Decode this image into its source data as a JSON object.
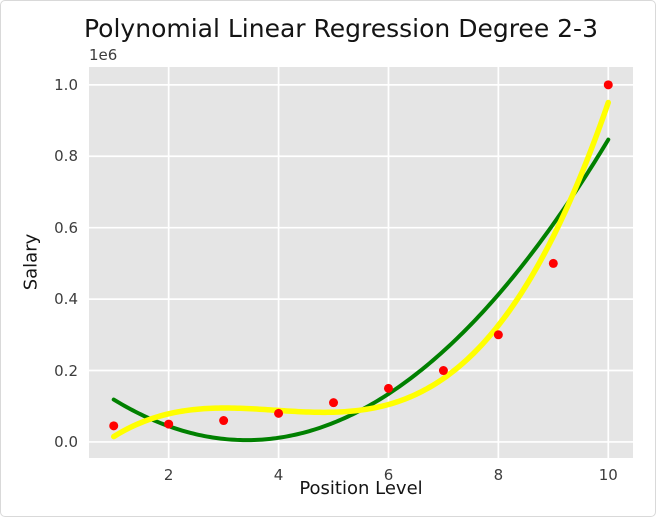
{
  "chart_data": {
    "type": "scatter",
    "title": "Polynomial Linear Regression Degree 2-3",
    "xlabel": "Position Level",
    "ylabel": "Salary",
    "y_offset_text": "1e6",
    "x_ticks": [
      2,
      4,
      6,
      8,
      10
    ],
    "x_tick_labels": [
      "2",
      "4",
      "6",
      "8",
      "10"
    ],
    "y_ticks": [
      0,
      200000,
      400000,
      600000,
      800000,
      1000000
    ],
    "y_tick_labels": [
      "0.0",
      "0.2",
      "0.4",
      "0.6",
      "0.8",
      "1.0"
    ],
    "xlim": [
      0.55,
      10.45
    ],
    "ylim": [
      -45000,
      1050000
    ],
    "grid": true,
    "legend": false,
    "axes_background": "#e5e5e5",
    "grid_color": "#ffffff",
    "scatter": {
      "name": "actual-salary-point",
      "color": "#ff0000",
      "marker_radius": 4.5,
      "x": [
        1,
        2,
        3,
        4,
        5,
        6,
        7,
        8,
        9,
        10
      ],
      "y": [
        45000,
        50000,
        60000,
        80000,
        110000,
        150000,
        200000,
        300000,
        500000,
        1000000
      ]
    },
    "series": [
      {
        "name": "polynomial-degree-2-fit-line",
        "degree": 2,
        "color": "#008000",
        "line_width": 4,
        "poly_coeffs": [
          232166,
          -132871,
          19432
        ],
        "x": [
          1,
          2,
          3,
          4,
          5,
          6,
          7,
          8,
          9,
          10
        ],
        "y": [
          118727,
          44151,
          8439,
          11591,
          53605,
          134484,
          254227,
          412833,
          610303,
          846636
        ]
      },
      {
        "name": "polynomial-degree-3-fit-line",
        "degree": 3,
        "color": "#ffff00",
        "line_width": 5.5,
        "poly_coeffs": [
          -121322,
          180655,
          -48547,
          4120
        ],
        "x": [
          1,
          2,
          3,
          4,
          5,
          6,
          7,
          8,
          9,
          10
        ],
        "y": [
          14906,
          78759,
          94957,
          88222,
          83269,
          104822,
          177598,
          326314,
          575696,
          950459
        ]
      }
    ]
  }
}
